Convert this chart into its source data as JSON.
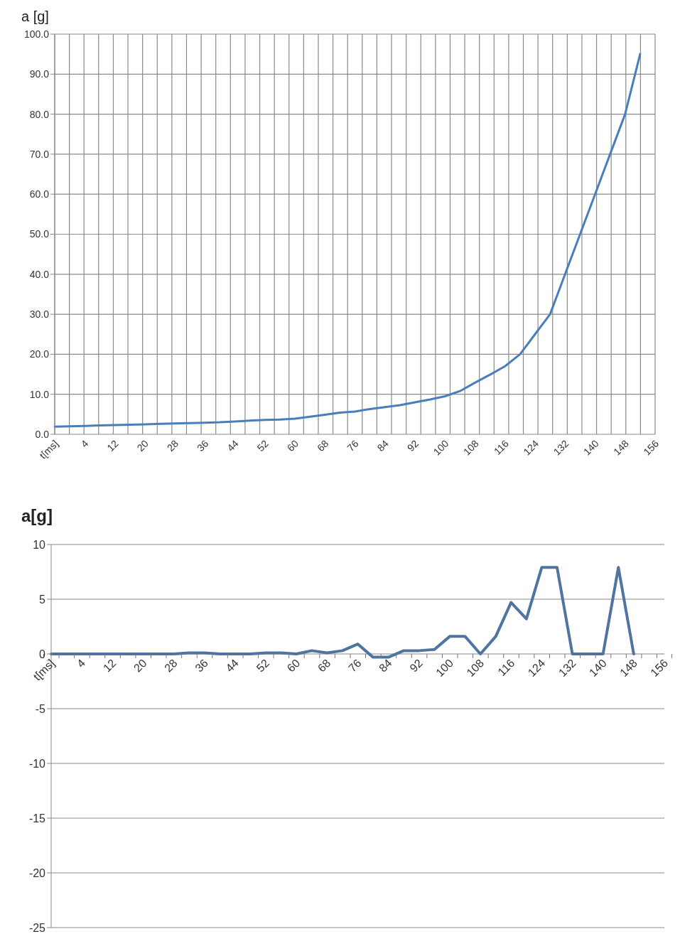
{
  "chart_data": [
    {
      "type": "line",
      "ylabel": "a [g]",
      "categories": [
        "t[ms]",
        null,
        "4",
        null,
        "12",
        null,
        "20",
        null,
        "28",
        null,
        "36",
        null,
        "44",
        null,
        "52",
        null,
        "60",
        null,
        "68",
        null,
        "76",
        null,
        "84",
        null,
        "92",
        null,
        "100",
        null,
        "108",
        null,
        "116",
        null,
        "124",
        null,
        "132",
        null,
        "140",
        null,
        "148",
        null,
        "156"
      ],
      "values": [
        1.9,
        2.0,
        2.1,
        2.2,
        2.3,
        2.4,
        2.5,
        2.6,
        2.7,
        2.8,
        2.9,
        3.0,
        3.2,
        3.4,
        3.6,
        3.7,
        3.9,
        4.4,
        4.9,
        5.4,
        5.7,
        6.3,
        6.8,
        7.3,
        8.0,
        8.7,
        9.5,
        10.8,
        12.9,
        14.9,
        17.0,
        20.0,
        25.0,
        30.0,
        40.0,
        50.0,
        60.0,
        70.0,
        80.0,
        95.0,
        null
      ],
      "color": "#4a7ebb",
      "ylim": [
        0,
        100
      ],
      "yticks": [
        {
          "value": 0,
          "label": "0.0"
        },
        {
          "value": 10,
          "label": "10.0"
        },
        {
          "value": 20,
          "label": "20.0"
        },
        {
          "value": 30,
          "label": "30.0"
        },
        {
          "value": 40,
          "label": "40.0"
        },
        {
          "value": 50,
          "label": "50.0"
        },
        {
          "value": 60,
          "label": "60.0"
        },
        {
          "value": 70,
          "label": "70.0"
        },
        {
          "value": 80,
          "label": "80.0"
        },
        {
          "value": 90,
          "label": "90.0"
        },
        {
          "value": 100,
          "label": "100.0"
        }
      ],
      "grid": true
    },
    {
      "type": "line",
      "ylabel": "a[g]",
      "categories": [
        "t[ms]",
        null,
        "4",
        null,
        "12",
        null,
        "20",
        null,
        "28",
        null,
        "36",
        null,
        "44",
        null,
        "52",
        null,
        "60",
        null,
        "68",
        null,
        "76",
        null,
        "84",
        null,
        "92",
        null,
        "100",
        null,
        "108",
        null,
        "116",
        null,
        "124",
        null,
        "132",
        null,
        "140",
        null,
        "148",
        null,
        "156"
      ],
      "values": [
        0,
        0,
        0,
        0,
        0,
        0,
        0,
        0,
        0,
        0.1,
        0.1,
        0,
        0,
        0,
        0.1,
        0.1,
        0,
        0.3,
        0.1,
        0.3,
        0.9,
        -0.3,
        -0.3,
        0.3,
        0.3,
        0.4,
        1.6,
        1.6,
        0,
        1.6,
        4.7,
        3.2,
        7.9,
        7.9,
        0,
        0,
        0,
        7.9,
        0,
        null,
        null
      ],
      "color": "#4f74a0",
      "ylim": [
        -25,
        10
      ],
      "yticks": [
        -25,
        -20,
        -15,
        -10,
        -5,
        0,
        5,
        10
      ],
      "grid": "y"
    }
  ]
}
